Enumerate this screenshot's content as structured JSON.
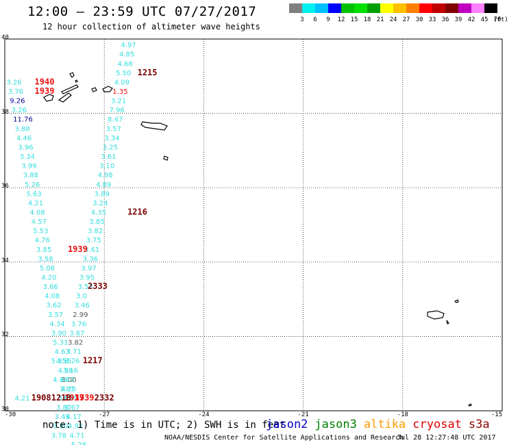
{
  "header": {
    "title": "12:00 – 23:59 UTC 07/27/2017",
    "subtitle": "12 hour collection of altimeter wave heights"
  },
  "colorbar": {
    "colors": [
      "#808080",
      "#00f0f0",
      "#00c0ff",
      "#0000ff",
      "#00c000",
      "#00e000",
      "#00a000",
      "#ffff00",
      "#ffc000",
      "#ff8000",
      "#ff0000",
      "#c00000",
      "#800000",
      "#c000c0",
      "#ff80ff",
      "#000000"
    ],
    "labels": [
      "3",
      "6",
      "9",
      "12",
      "15",
      "18",
      "21",
      "24",
      "27",
      "30",
      "33",
      "36",
      "39",
      "42",
      "45",
      "70"
    ],
    "unit": "(ft)"
  },
  "axes": {
    "lat_ticks": [
      "40",
      "38",
      "36",
      "34",
      "32",
      "30"
    ],
    "lon_ticks": [
      "-30",
      "-27",
      "-24",
      "-21",
      "-18",
      "-15"
    ],
    "lat_range": [
      30,
      40
    ],
    "lon_range": [
      -30,
      -15
    ]
  },
  "colors": {
    "swh": "#33dddd",
    "swh_dark": "#555555",
    "time_red": "#ee1111",
    "time_dark": "#7a0000",
    "dark_blue": "#000099"
  },
  "observations": [
    {
      "lon": -26.5,
      "lat": 39.85,
      "text": "4.97",
      "c": "swh"
    },
    {
      "lon": -26.55,
      "lat": 39.6,
      "text": "4.85",
      "c": "swh"
    },
    {
      "lon": -26.6,
      "lat": 39.35,
      "text": "4.68",
      "c": "swh"
    },
    {
      "lon": -26.65,
      "lat": 39.1,
      "text": "5.50",
      "c": "swh"
    },
    {
      "lon": -26.7,
      "lat": 38.85,
      "text": "4.09",
      "c": "swh"
    },
    {
      "lon": -26.75,
      "lat": 38.6,
      "text": "1.35",
      "c": "time_red"
    },
    {
      "lon": -26.8,
      "lat": 38.35,
      "text": "3.21",
      "c": "swh"
    },
    {
      "lon": -26.85,
      "lat": 38.1,
      "text": "7.96",
      "c": "swh"
    },
    {
      "lon": -26.9,
      "lat": 37.85,
      "text": "8.47",
      "c": "swh"
    },
    {
      "lon": -26.95,
      "lat": 37.6,
      "text": "3.57",
      "c": "swh"
    },
    {
      "lon": -27.0,
      "lat": 37.35,
      "text": "3.34",
      "c": "swh"
    },
    {
      "lon": -27.05,
      "lat": 37.1,
      "text": "3.25",
      "c": "swh"
    },
    {
      "lon": -27.1,
      "lat": 36.85,
      "text": "3.61",
      "c": "swh"
    },
    {
      "lon": -27.15,
      "lat": 36.6,
      "text": "3.10",
      "c": "swh"
    },
    {
      "lon": -27.2,
      "lat": 36.35,
      "text": "4.98",
      "c": "swh"
    },
    {
      "lon": -27.25,
      "lat": 36.1,
      "text": "4.89",
      "c": "swh"
    },
    {
      "lon": -27.3,
      "lat": 35.85,
      "text": "3.89",
      "c": "swh"
    },
    {
      "lon": -27.35,
      "lat": 35.6,
      "text": "3.24",
      "c": "swh"
    },
    {
      "lon": -27.4,
      "lat": 35.35,
      "text": "4.35",
      "c": "swh"
    },
    {
      "lon": -27.45,
      "lat": 35.1,
      "text": "3.85",
      "c": "swh"
    },
    {
      "lon": -27.5,
      "lat": 34.85,
      "text": "3.82",
      "c": "swh"
    },
    {
      "lon": -27.55,
      "lat": 34.6,
      "text": "3.75",
      "c": "swh"
    },
    {
      "lon": -27.6,
      "lat": 34.35,
      "text": "3.61",
      "c": "swh"
    },
    {
      "lon": -27.65,
      "lat": 34.1,
      "text": "3.36",
      "c": "swh"
    },
    {
      "lon": -27.7,
      "lat": 33.85,
      "text": "3.97",
      "c": "swh"
    },
    {
      "lon": -27.75,
      "lat": 33.6,
      "text": "3.95",
      "c": "swh"
    },
    {
      "lon": -27.8,
      "lat": 33.35,
      "text": "3.53",
      "c": "swh"
    },
    {
      "lon": -27.85,
      "lat": 33.1,
      "text": "3.0",
      "c": "swh"
    },
    {
      "lon": -27.9,
      "lat": 32.85,
      "text": "3.46",
      "c": "swh"
    },
    {
      "lon": -27.95,
      "lat": 32.6,
      "text": "2.99",
      "c": "swh_dark"
    },
    {
      "lon": -28.0,
      "lat": 32.35,
      "text": "3.76",
      "c": "swh"
    },
    {
      "lon": -28.05,
      "lat": 32.1,
      "text": "3.67",
      "c": "swh"
    },
    {
      "lon": -28.1,
      "lat": 31.85,
      "text": "3.82",
      "c": "swh_dark"
    },
    {
      "lon": -28.15,
      "lat": 31.6,
      "text": "3.71",
      "c": "swh"
    },
    {
      "lon": -28.2,
      "lat": 31.35,
      "text": "3.26",
      "c": "swh"
    },
    {
      "lon": -28.25,
      "lat": 31.1,
      "text": "3.16",
      "c": "swh"
    },
    {
      "lon": -28.3,
      "lat": 30.85,
      "text": "3.00",
      "c": "swh_dark"
    },
    {
      "lon": -28.35,
      "lat": 30.6,
      "text": "3.81",
      "c": "swh"
    },
    {
      "lon": -28.4,
      "lat": 30.35,
      "text": "3.49",
      "c": "swh"
    },
    {
      "lon": -28.45,
      "lat": 30.1,
      "text": "3.87",
      "c": "swh"
    },
    {
      "lon": -28.5,
      "lat": 29.85,
      "text": "3.49",
      "c": "swh"
    },
    {
      "lon": -28.55,
      "lat": 29.6,
      "text": "3.80",
      "c": "swh"
    },
    {
      "lon": -28.6,
      "lat": 29.35,
      "text": "3.78",
      "c": "swh"
    },
    {
      "lon": -29.95,
      "lat": 38.85,
      "text": "3.26",
      "c": "swh"
    },
    {
      "lon": -29.9,
      "lat": 38.6,
      "text": "3.76",
      "c": "swh"
    },
    {
      "lon": -29.85,
      "lat": 38.35,
      "text": "9.26",
      "c": "dark_blue"
    },
    {
      "lon": -29.8,
      "lat": 38.1,
      "text": "3.26",
      "c": "swh"
    },
    {
      "lon": -29.75,
      "lat": 37.85,
      "text": "11.76",
      "c": "dark_blue"
    },
    {
      "lon": -29.7,
      "lat": 37.6,
      "text": "3.88",
      "c": "swh"
    },
    {
      "lon": -29.65,
      "lat": 37.35,
      "text": "4.46",
      "c": "swh"
    },
    {
      "lon": -29.6,
      "lat": 37.1,
      "text": "3.96",
      "c": "swh"
    },
    {
      "lon": -29.55,
      "lat": 36.85,
      "text": "3.34",
      "c": "swh"
    },
    {
      "lon": -29.5,
      "lat": 36.6,
      "text": "3.99",
      "c": "swh"
    },
    {
      "lon": -29.45,
      "lat": 36.35,
      "text": "3.88",
      "c": "swh"
    },
    {
      "lon": -29.4,
      "lat": 36.1,
      "text": "5.26",
      "c": "swh"
    },
    {
      "lon": -29.35,
      "lat": 35.85,
      "text": "5.63",
      "c": "swh"
    },
    {
      "lon": -29.3,
      "lat": 35.6,
      "text": "4.21",
      "c": "swh"
    },
    {
      "lon": -29.25,
      "lat": 35.35,
      "text": "4.08",
      "c": "swh"
    },
    {
      "lon": -29.2,
      "lat": 35.1,
      "text": "4.57",
      "c": "swh"
    },
    {
      "lon": -29.15,
      "lat": 34.85,
      "text": "5.53",
      "c": "swh"
    },
    {
      "lon": -29.1,
      "lat": 34.6,
      "text": "4.76",
      "c": "swh"
    },
    {
      "lon": -29.05,
      "lat": 34.35,
      "text": "3.85",
      "c": "swh"
    },
    {
      "lon": -29.0,
      "lat": 34.1,
      "text": "3.58",
      "c": "swh"
    },
    {
      "lon": -28.95,
      "lat": 33.85,
      "text": "5.06",
      "c": "swh"
    },
    {
      "lon": -28.9,
      "lat": 33.6,
      "text": "4.20",
      "c": "swh"
    },
    {
      "lon": -28.85,
      "lat": 33.35,
      "text": "3.66",
      "c": "swh"
    },
    {
      "lon": -28.8,
      "lat": 33.1,
      "text": "4.08",
      "c": "swh"
    },
    {
      "lon": -28.75,
      "lat": 32.85,
      "text": "3.62",
      "c": "swh"
    },
    {
      "lon": -28.7,
      "lat": 32.6,
      "text": "3.57",
      "c": "swh"
    },
    {
      "lon": -28.65,
      "lat": 32.35,
      "text": "4.34",
      "c": "swh"
    },
    {
      "lon": -28.6,
      "lat": 32.1,
      "text": "3.90",
      "c": "swh"
    },
    {
      "lon": -28.55,
      "lat": 31.85,
      "text": "5.31",
      "c": "swh"
    },
    {
      "lon": -28.5,
      "lat": 31.6,
      "text": "4.63",
      "c": "swh"
    },
    {
      "lon": -28.45,
      "lat": 31.35,
      "text": "4.55",
      "c": "swh"
    },
    {
      "lon": -28.4,
      "lat": 31.1,
      "text": "4.98",
      "c": "swh"
    },
    {
      "lon": -28.35,
      "lat": 30.85,
      "text": "4.72",
      "c": "swh"
    },
    {
      "lon": -28.3,
      "lat": 30.6,
      "text": "4.25",
      "c": "swh"
    },
    {
      "lon": -28.25,
      "lat": 30.35,
      "text": "4.59",
      "c": "swh"
    },
    {
      "lon": -28.2,
      "lat": 30.1,
      "text": "3.67",
      "c": "swh"
    },
    {
      "lon": -28.15,
      "lat": 29.85,
      "text": "4.17",
      "c": "swh"
    },
    {
      "lon": -28.1,
      "lat": 29.6,
      "text": "4.92",
      "c": "swh"
    },
    {
      "lon": -28.05,
      "lat": 29.35,
      "text": "4.71",
      "c": "swh"
    },
    {
      "lon": -28.0,
      "lat": 29.1,
      "text": "5.28",
      "c": "swh"
    },
    {
      "lon": -28.6,
      "lat": 31.35,
      "text": "5.35",
      "c": "swh"
    },
    {
      "lon": -28.55,
      "lat": 30.85,
      "text": "4.34",
      "c": "swh"
    },
    {
      "lon": -29.7,
      "lat": 30.35,
      "text": "4.21",
      "c": "swh"
    }
  ],
  "time_labels": [
    {
      "lon": -26.0,
      "lat": 39.1,
      "text": "1215",
      "c": "time_dark"
    },
    {
      "lon": -29.1,
      "lat": 38.85,
      "text": "1940",
      "c": "time_red"
    },
    {
      "lon": -29.1,
      "lat": 38.6,
      "text": "1939",
      "c": "time_red"
    },
    {
      "lon": -26.3,
      "lat": 35.35,
      "text": "1216",
      "c": "time_dark"
    },
    {
      "lon": -28.1,
      "lat": 34.35,
      "text": "1939",
      "c": "time_red"
    },
    {
      "lon": -27.5,
      "lat": 33.35,
      "text": "2333",
      "c": "time_dark"
    },
    {
      "lon": -27.65,
      "lat": 31.35,
      "text": "1217",
      "c": "time_dark"
    },
    {
      "lon": -27.9,
      "lat": 30.35,
      "text": "1939",
      "c": "time_red"
    },
    {
      "lon": -28.2,
      "lat": 30.35,
      "text": "1937",
      "c": "time_red"
    },
    {
      "lon": -29.2,
      "lat": 30.35,
      "text": "1908",
      "c": "time_dark"
    },
    {
      "lon": -28.6,
      "lat": 30.35,
      "text": "1218",
      "c": "time_dark"
    },
    {
      "lon": -27.3,
      "lat": 30.35,
      "text": "2332",
      "c": "time_dark"
    }
  ],
  "footer": {
    "note": "note: 1) Time is in UTC; 2) SWH is in feet",
    "legend": [
      {
        "name": "jason2",
        "color": "#0000cc"
      },
      {
        "name": "jason3",
        "color": "#008000"
      },
      {
        "name": "altika",
        "color": "#ff9900"
      },
      {
        "name": "cryosat",
        "color": "#dd0000"
      },
      {
        "name": "s3a",
        "color": "#880000"
      }
    ],
    "credit": "NOAA/NESDIS Center for Satellite Applications and Research",
    "timestamp": "Jul 28 12:27:48 UTC 2017"
  }
}
